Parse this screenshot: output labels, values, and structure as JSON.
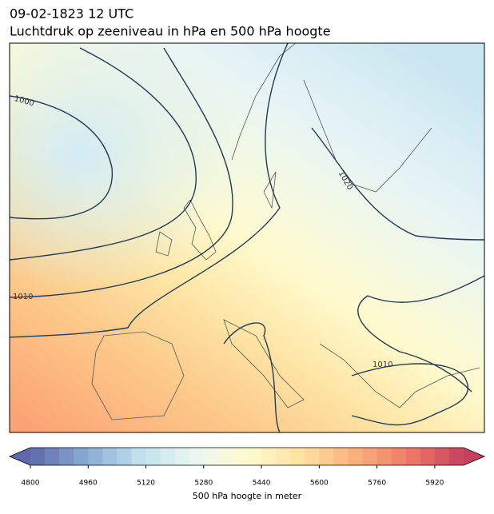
{
  "header": {
    "title": "09-02-1823 12 UTC",
    "subtitle": "Luchtdruk op zeeniveau in hPa en 500 hPa hoogte"
  },
  "map": {
    "contour_labels": [
      "1000",
      "1020",
      "1010",
      "1010"
    ]
  },
  "colorbar": {
    "lim": [
      4800,
      6000
    ],
    "level_step": 40,
    "ticks": [
      4800,
      4960,
      5120,
      5280,
      5440,
      5600,
      5760,
      5920
    ],
    "colormap": [
      "#5f68aa",
      "#87a9d3",
      "#bfe0ec",
      "#eaf6f0",
      "#fffbcf",
      "#fee2a0",
      "#fbb07a",
      "#ee7a67",
      "#c6415f"
    ],
    "label": "500 hPa hoogte in meter"
  }
}
